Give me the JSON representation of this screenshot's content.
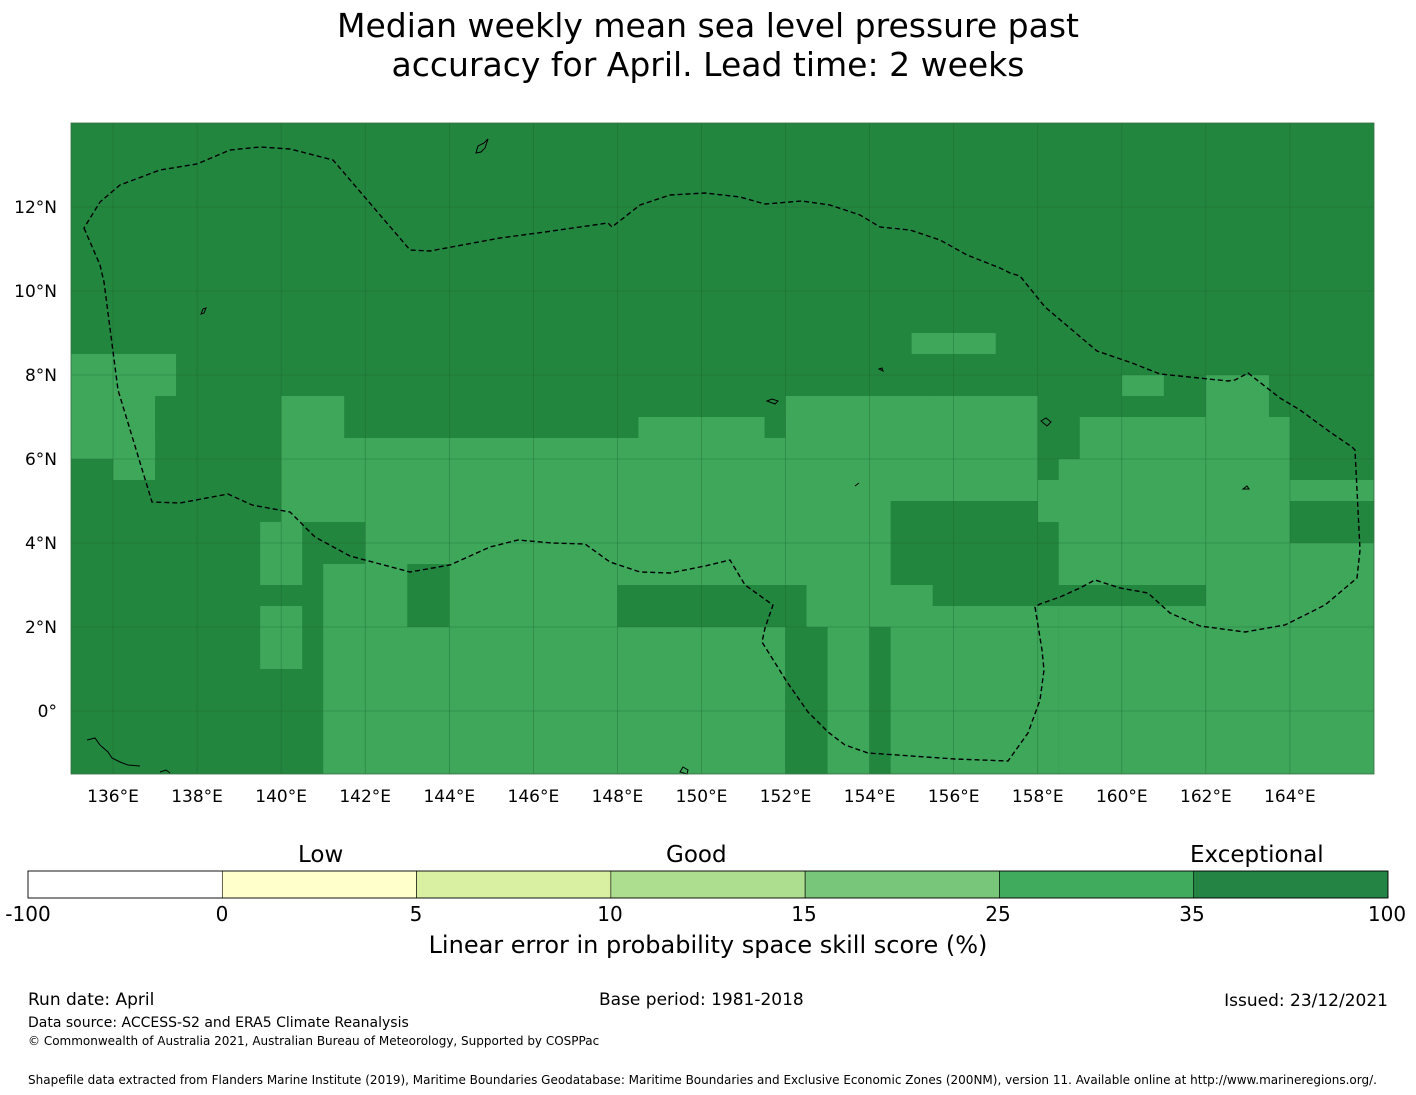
{
  "title": {
    "line1": "Median weekly mean sea level pressure past",
    "line2": "accuracy for April. Lead time: 2 weeks"
  },
  "map": {
    "lon_labels": [
      "136°E",
      "138°E",
      "140°E",
      "142°E",
      "144°E",
      "146°E",
      "148°E",
      "150°E",
      "152°E",
      "154°E",
      "156°E",
      "158°E",
      "160°E",
      "162°E",
      "164°E"
    ],
    "lat_labels": [
      "12°N",
      "10°N",
      "8°N",
      "6°N",
      "4°N",
      "2°N",
      "0°"
    ],
    "lon_range": [
      135,
      166
    ],
    "lat_range": [
      -1.5,
      14
    ],
    "colors": {
      "exceptional": "#23863f",
      "good_high": "#3ea75a",
      "sea_border": "#000000",
      "grid": "#1b5c2c"
    },
    "cells_35_to_100_note": "",
    "cells_25_35": [
      [
        135,
        7.5,
        1,
        1
      ],
      [
        136,
        7.5,
        1.5,
        1
      ],
      [
        140,
        6.5,
        1.5,
        1
      ],
      [
        135,
        6,
        2,
        1.5
      ],
      [
        136,
        5.5,
        1,
        1
      ],
      [
        141,
        6,
        11,
        0.5
      ],
      [
        140,
        4.5,
        3,
        2
      ],
      [
        142,
        3.5,
        6.5,
        3
      ],
      [
        145.5,
        5,
        2.5,
        0.5
      ],
      [
        146,
        4,
        2,
        0.5
      ],
      [
        139.5,
        3,
        1,
        1.5
      ],
      [
        139.5,
        1,
        1,
        1.5
      ],
      [
        141,
        2,
        2,
        1.5
      ],
      [
        141,
        -1.5,
        3,
        3.5
      ],
      [
        144,
        2,
        4,
        2
      ],
      [
        144,
        -1.5,
        8,
        3.5
      ],
      [
        148,
        3,
        6.5,
        3.5
      ],
      [
        148.5,
        6.5,
        3,
        0.5
      ],
      [
        152,
        5,
        6,
        2.5
      ],
      [
        152,
        7,
        1,
        0.5
      ],
      [
        153.5,
        7,
        2,
        0.5
      ],
      [
        155,
        8.5,
        2,
        0.5
      ],
      [
        152.5,
        2,
        3,
        1
      ],
      [
        153,
        -1.5,
        1,
        3.5
      ],
      [
        154.5,
        -1.5,
        4,
        4
      ],
      [
        158.5,
        3,
        5.5,
        3
      ],
      [
        158,
        4.5,
        2,
        1
      ],
      [
        159,
        6,
        5,
        1
      ],
      [
        160,
        7.5,
        1,
        0.5
      ],
      [
        162,
        7,
        1.5,
        1
      ],
      [
        163.5,
        5,
        2.5,
        0.5
      ],
      [
        162,
        4,
        2,
        1
      ],
      [
        162,
        -1.5,
        4,
        5.5
      ],
      [
        158.5,
        -1.5,
        3.5,
        4
      ]
    ]
  },
  "colorbar": {
    "categories": [
      "Low",
      "Good",
      "Exceptional"
    ],
    "ticks": [
      "-100",
      "0",
      "5",
      "10",
      "15",
      "25",
      "35",
      "100"
    ],
    "colors": [
      "#ffffff",
      "#ffffcc",
      "#d9f0a3",
      "#addd8e",
      "#78c679",
      "#41ab5d",
      "#238443"
    ],
    "label": "Linear error in probability space skill score (%)"
  },
  "footer": {
    "run_date": "Run date: April",
    "base_period": "Base period: 1981-2018",
    "issued": "Issued: 23/12/2021",
    "data_source": "Data source: ACCESS-S2 and ERA5 Climate Reanalysis",
    "copyright": "© Commonwealth of Australia 2021, Australian Bureau of Meteorology, Supported by COSPPac",
    "shapefile": "Shapefile data extracted from Flanders Marine Institute (2019), Maritime Boundaries Geodatabase: Maritime Boundaries and Exclusive Economic Zones (200NM), version 11. Available online at http://www.marineregions.org/."
  }
}
